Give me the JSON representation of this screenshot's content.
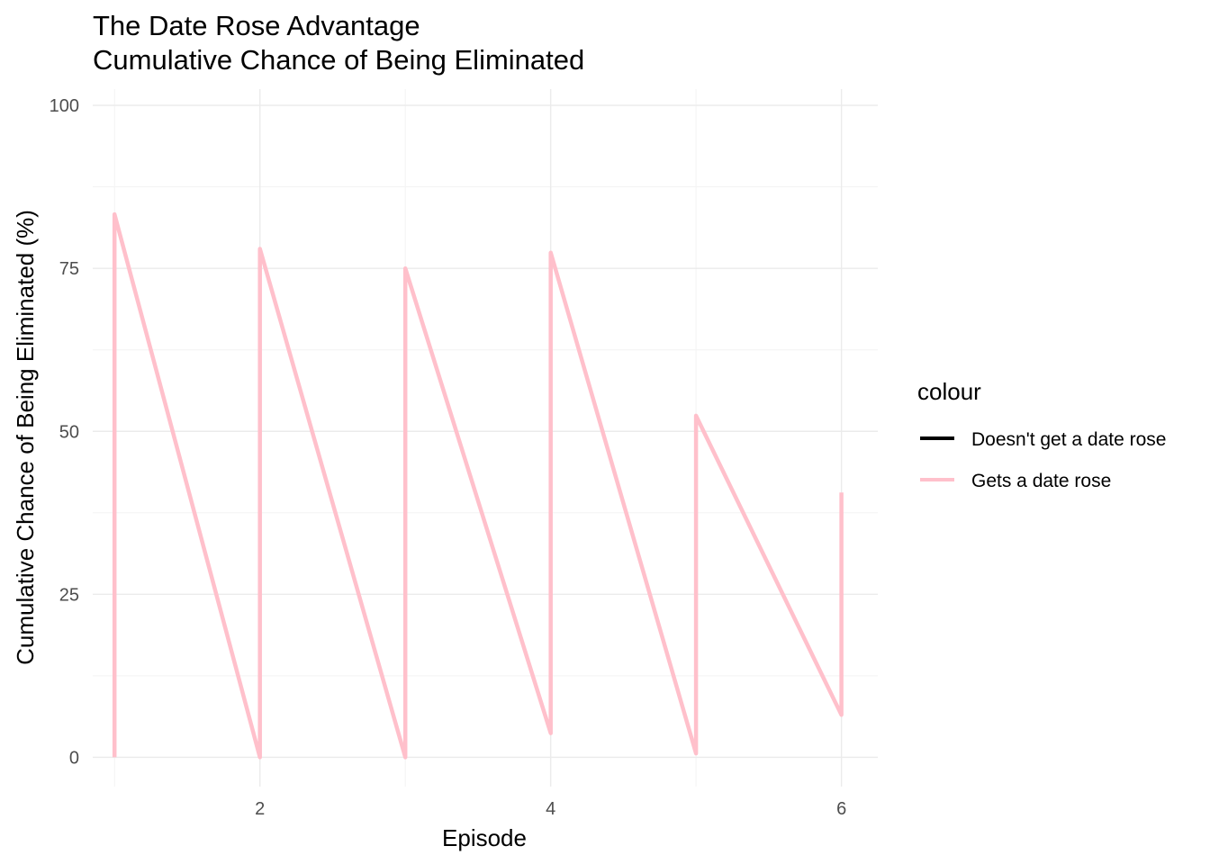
{
  "chart_data": {
    "type": "line",
    "title": "The Date Rose Advantage",
    "subtitle": "Cumulative Chance of Being Eliminated",
    "xlabel": "Episode",
    "ylabel": "Cumulative Chance of Being Eliminated (%)",
    "xlim": [
      0.85,
      6.25
    ],
    "ylim": [
      -4.5,
      102.5
    ],
    "x_ticks": [
      2,
      4,
      6
    ],
    "y_ticks": [
      0,
      25,
      50,
      75,
      100
    ],
    "grid": true,
    "legend": {
      "title": "colour",
      "placement": "right",
      "entries": [
        {
          "label": "Doesn't get a date rose",
          "color": "#000000"
        },
        {
          "label": "Gets a date rose",
          "color": "#FFC0CB"
        }
      ]
    },
    "series": [
      {
        "name": "Gets a date rose",
        "color": "#FFC0CB",
        "x": [
          1,
          1,
          2,
          2,
          3,
          3,
          4,
          4,
          5,
          5,
          6,
          6
        ],
        "y": [
          0,
          83.3,
          0,
          78,
          0,
          75,
          3.7,
          77.4,
          0.6,
          52.4,
          6.5,
          40.6
        ]
      }
    ]
  }
}
